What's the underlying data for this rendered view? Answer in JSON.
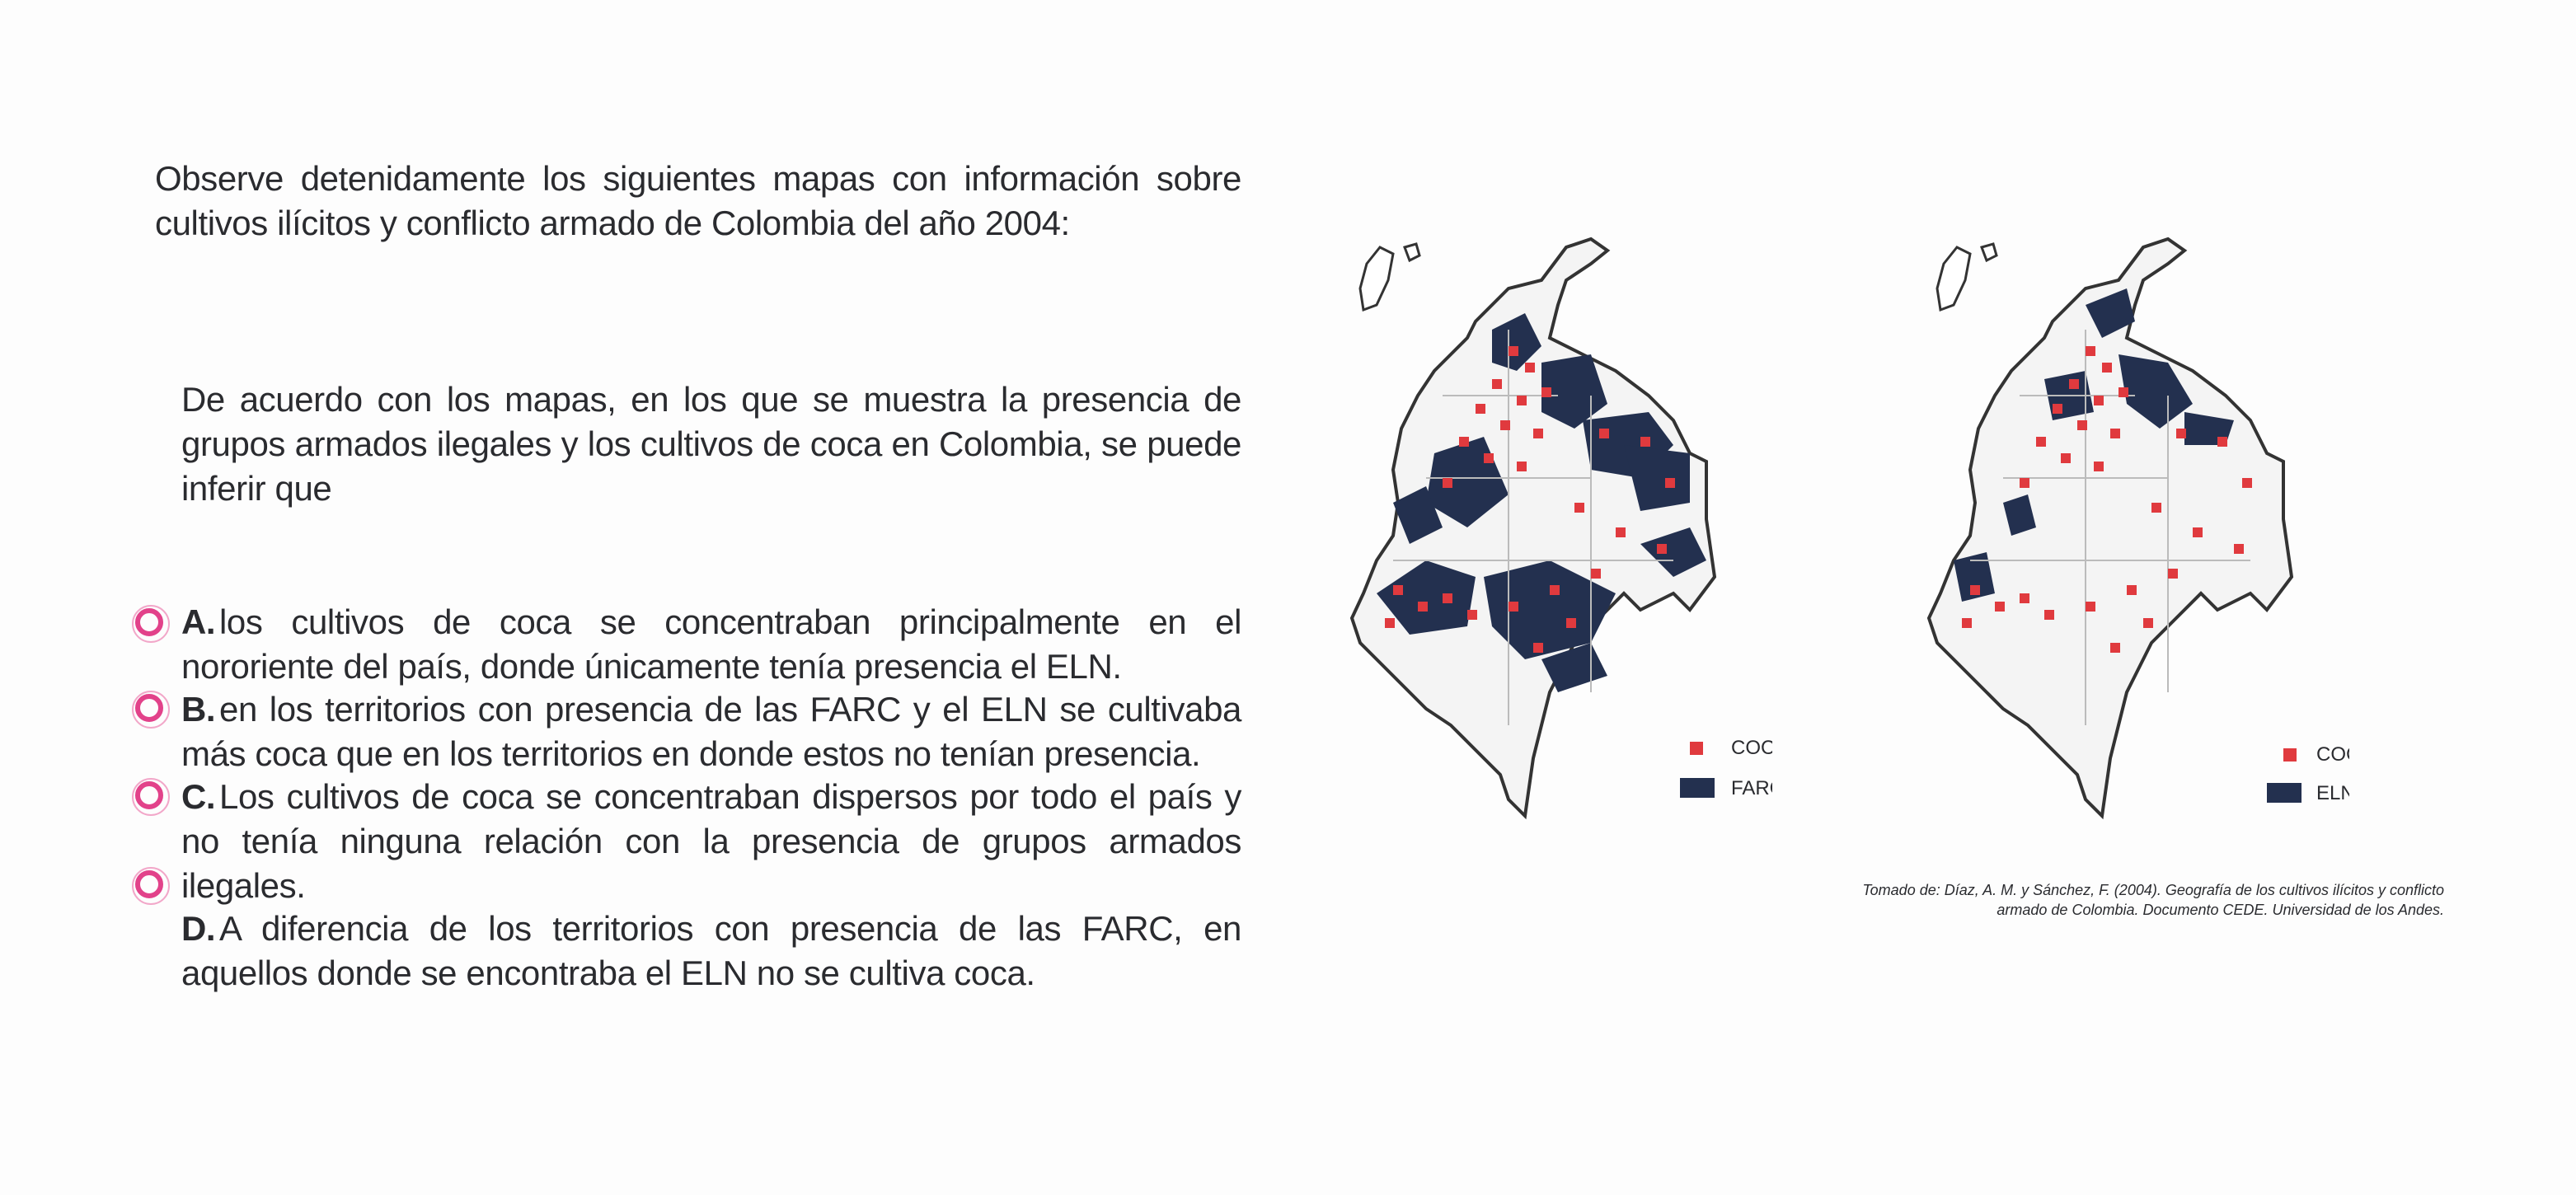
{
  "intro": "Observe detenidamente los siguientes mapas con información sobre cultivos ilícitos y conflicto armado de Colombia del año 2004:",
  "question": "De acuerdo con los mapas, en los que se muestra la presencia de grupos armados ilegales y los cultivos de coca en Colombia, se puede inferir que",
  "options": [
    {
      "letter": "A.",
      "text": "los cultivos de coca se concentraban principalmente en el nororiente del país, donde únicamente tenía presencia el ELN."
    },
    {
      "letter": "B.",
      "text": "en los territorios con presencia de las FARC y el ELN se cultivaba más coca que en los territorios en donde estos no tenían presencia."
    },
    {
      "letter": "C.",
      "text": "Los cultivos de coca se concentraban dispersos por todo el país y no tenía ninguna relación con la presencia de grupos armados ilegales."
    },
    {
      "letter": "D.",
      "text": "A diferencia de los territorios con presencia de las FARC, en aquellos donde se encontraba el ELN no se cultiva coca."
    }
  ],
  "maps": [
    {
      "legend": {
        "coca": "COCA",
        "group": "FARC"
      }
    },
    {
      "legend": {
        "coca": "COCA",
        "group": "ELN"
      }
    }
  ],
  "citation_line1": "Tomado de: Díaz, A. M. y Sánchez, F. (2004).  Geografía de los cultivos ilícitos y conflicto",
  "citation_line2": "armado de Colombia.  Documento CEDE. Universidad de los Andes.",
  "colors": {
    "accent": "#e2428a",
    "coca": "#e03a3e",
    "group": "#23304f"
  }
}
